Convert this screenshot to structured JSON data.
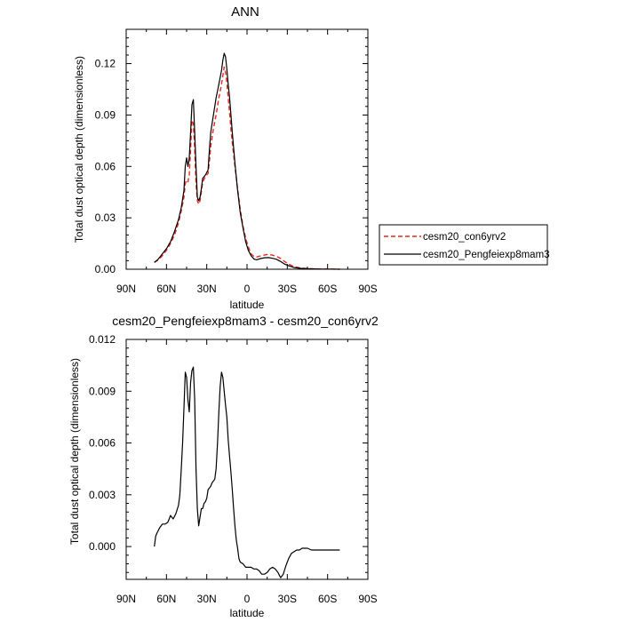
{
  "chart_data": [
    {
      "type": "line",
      "title": "ANN",
      "xlabel": "latitude",
      "ylabel": "Total dust optical depth (dimensionless)",
      "xlim": [
        90,
        -90
      ],
      "ylim": [
        0.0,
        0.14
      ],
      "xticks": [
        90,
        60,
        30,
        0,
        -30,
        -60,
        -90
      ],
      "xtick_labels": [
        "90N",
        "60N",
        "30N",
        "0",
        "30S",
        "60S",
        "90S"
      ],
      "yticks": [
        0.0,
        0.03,
        0.06,
        0.09,
        0.12
      ],
      "ytick_labels": [
        "0.00",
        "0.03",
        "0.06",
        "0.09",
        "0.12"
      ],
      "legend": {
        "placement": "right",
        "entries": [
          "cesm20_con6yrv2",
          "cesm20_Pengfeiexp8mam3"
        ]
      },
      "series": [
        {
          "name": "cesm20_con6yrv2",
          "color": "#e8281e",
          "dash": "dashed",
          "x": [
            69,
            66,
            63,
            60,
            57,
            54,
            51,
            49,
            47,
            46,
            45,
            44,
            43,
            42,
            41,
            40,
            39,
            38,
            37,
            36,
            35,
            34,
            33,
            31,
            29,
            28,
            27,
            25,
            23,
            21,
            19,
            18,
            17,
            16,
            15,
            14,
            13,
            12,
            11,
            9,
            7,
            5,
            3,
            1,
            -1,
            -3,
            -5,
            -7,
            -10,
            -13,
            -16,
            -19,
            -22,
            -25,
            -28,
            -31,
            -35,
            -40,
            -45,
            -50,
            -55,
            -60,
            -69
          ],
          "y": [
            0.004,
            0.0055,
            0.008,
            0.011,
            0.015,
            0.02,
            0.027,
            0.034,
            0.042,
            0.05,
            0.052,
            0.051,
            0.055,
            0.07,
            0.087,
            0.085,
            0.07,
            0.05,
            0.04,
            0.038,
            0.04,
            0.045,
            0.051,
            0.054,
            0.056,
            0.063,
            0.072,
            0.082,
            0.09,
            0.1,
            0.108,
            0.113,
            0.118,
            0.115,
            0.109,
            0.1,
            0.091,
            0.082,
            0.074,
            0.06,
            0.047,
            0.035,
            0.025,
            0.018,
            0.013,
            0.009,
            0.0075,
            0.0071,
            0.0078,
            0.0083,
            0.0087,
            0.0082,
            0.0075,
            0.0063,
            0.0045,
            0.003,
            0.0015,
            0.0007,
            0.0003,
            0.0002,
            0.0001,
            0.0001,
            0.0
          ]
        },
        {
          "name": "cesm20_Pengfeiexp8mam3",
          "color": "#000000",
          "dash": "solid",
          "x": [
            69,
            66,
            63,
            60,
            57,
            54,
            51,
            49,
            47,
            46,
            45,
            44,
            43,
            42,
            41,
            40,
            39,
            38,
            37,
            36,
            35,
            34,
            33,
            31,
            29,
            28,
            27,
            25,
            23,
            21,
            19,
            18,
            17,
            16,
            15,
            14,
            13,
            12,
            11,
            9,
            7,
            5,
            3,
            1,
            -1,
            -3,
            -5,
            -7,
            -10,
            -13,
            -16,
            -19,
            -22,
            -25,
            -28,
            -31,
            -35,
            -40,
            -45,
            -50,
            -55,
            -60,
            -69
          ],
          "y": [
            0.004,
            0.006,
            0.009,
            0.012,
            0.016,
            0.022,
            0.029,
            0.036,
            0.046,
            0.06,
            0.065,
            0.06,
            0.065,
            0.08,
            0.096,
            0.099,
            0.08,
            0.06,
            0.042,
            0.04,
            0.042,
            0.047,
            0.053,
            0.055,
            0.058,
            0.07,
            0.08,
            0.09,
            0.1,
            0.108,
            0.116,
            0.122,
            0.126,
            0.124,
            0.117,
            0.108,
            0.1,
            0.09,
            0.08,
            0.062,
            0.046,
            0.033,
            0.024,
            0.016,
            0.011,
            0.008,
            0.006,
            0.0055,
            0.0062,
            0.0067,
            0.0068,
            0.0064,
            0.0058,
            0.0045,
            0.003,
            0.002,
            0.001,
            0.0005,
            0.0003,
            0.0002,
            0.0001,
            0.0001,
            0.0
          ]
        }
      ]
    },
    {
      "type": "line",
      "title": "cesm20_Pengfeiexp8mam3 - cesm20_con6yrv2",
      "xlabel": "latitude",
      "ylabel": "Total dust optical depth (dimensionless)",
      "xlim": [
        90,
        -90
      ],
      "ylim": [
        -0.0019,
        0.012
      ],
      "xticks": [
        90,
        60,
        30,
        0,
        -30,
        -60,
        -90
      ],
      "xtick_labels": [
        "90N",
        "60N",
        "30N",
        "0",
        "30S",
        "60S",
        "90S"
      ],
      "yticks": [
        0.0,
        0.003,
        0.006,
        0.009,
        0.012
      ],
      "ytick_labels": [
        "0.000",
        "0.003",
        "0.006",
        "0.009",
        "0.012"
      ],
      "series": [
        {
          "name": "cesm20_Pengfeiexp8mam3 - cesm20_con6yrv2",
          "color": "#000000",
          "dash": "solid",
          "x": [
            69,
            68,
            67,
            65,
            63,
            61,
            59,
            58,
            57,
            56,
            55,
            53,
            51,
            50,
            49,
            48,
            47,
            46,
            45,
            44,
            43,
            42,
            41,
            40,
            39,
            38,
            37,
            36,
            35,
            34,
            33,
            32,
            31,
            30,
            29,
            28,
            27,
            26,
            25,
            24,
            23,
            22,
            21,
            20,
            19,
            18,
            17,
            16,
            15,
            14,
            13,
            12,
            11,
            10,
            9,
            8,
            7,
            6,
            5,
            3,
            1,
            -1,
            -3,
            -5,
            -7,
            -9,
            -11,
            -13,
            -15,
            -17,
            -19,
            -21,
            -23,
            -25,
            -27,
            -29,
            -31,
            -33,
            -35,
            -37,
            -39,
            -41,
            -43,
            -45,
            -48,
            -52,
            -56,
            -60,
            -64,
            -69
          ],
          "y": [
            0.0,
            0.0006,
            0.0008,
            0.0011,
            0.0013,
            0.0013,
            0.0014,
            0.0016,
            0.0018,
            0.0017,
            0.0016,
            0.0019,
            0.0024,
            0.003,
            0.0045,
            0.006,
            0.008,
            0.0101,
            0.0098,
            0.0085,
            0.0078,
            0.0095,
            0.0102,
            0.0104,
            0.0085,
            0.0045,
            0.0022,
            0.0012,
            0.0017,
            0.0022,
            0.0022,
            0.0025,
            0.0026,
            0.0028,
            0.0033,
            0.0034,
            0.0035,
            0.0037,
            0.0038,
            0.0039,
            0.0045,
            0.006,
            0.0078,
            0.0093,
            0.0101,
            0.0098,
            0.009,
            0.0082,
            0.0075,
            0.0062,
            0.0052,
            0.0043,
            0.0033,
            0.0022,
            0.0012,
            0.0004,
            -0.0001,
            -0.0007,
            -0.0009,
            -0.001,
            -0.0012,
            -0.0012,
            -0.0012,
            -0.0013,
            -0.0013,
            -0.0014,
            -0.0016,
            -0.0016,
            -0.0015,
            -0.0013,
            -0.0012,
            -0.0013,
            -0.0015,
            -0.0018,
            -0.0016,
            -0.0011,
            -0.0007,
            -0.0004,
            -0.0003,
            -0.0002,
            -0.0002,
            -0.0001,
            -0.0001,
            -0.0001,
            -0.0002,
            -0.0002,
            -0.0002,
            -0.0002,
            -0.0002,
            -0.0002
          ]
        }
      ]
    }
  ]
}
